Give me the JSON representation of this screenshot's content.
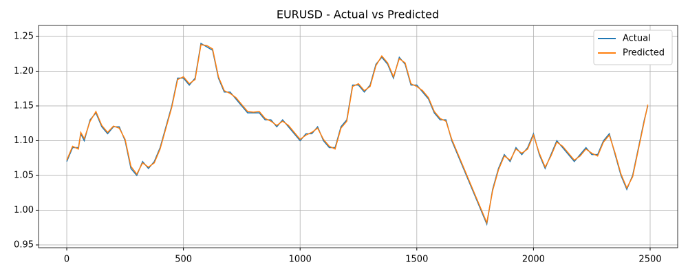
{
  "chart_data": {
    "type": "line",
    "title": "EURUSD - Actual vs Predicted",
    "x": [
      0,
      25,
      50,
      60,
      75,
      100,
      125,
      150,
      175,
      200,
      225,
      250,
      275,
      300,
      325,
      350,
      375,
      400,
      425,
      450,
      475,
      500,
      525,
      550,
      575,
      600,
      625,
      650,
      675,
      700,
      725,
      750,
      775,
      800,
      825,
      850,
      875,
      900,
      925,
      950,
      975,
      1000,
      1025,
      1050,
      1075,
      1100,
      1125,
      1150,
      1175,
      1200,
      1225,
      1250,
      1275,
      1300,
      1325,
      1350,
      1375,
      1400,
      1425,
      1450,
      1475,
      1500,
      1525,
      1550,
      1575,
      1600,
      1625,
      1650,
      1675,
      1700,
      1725,
      1750,
      1775,
      1800,
      1825,
      1850,
      1875,
      1900,
      1925,
      1950,
      1975,
      2000,
      2025,
      2050,
      2075,
      2100,
      2125,
      2150,
      2175,
      2200,
      2225,
      2250,
      2275,
      2300,
      2325,
      2350,
      2375,
      2400,
      2425,
      2450,
      2475,
      2490
    ],
    "series": [
      {
        "name": "Actual",
        "color": "#1f77b4",
        "values": [
          1.07,
          1.09,
          1.09,
          1.11,
          1.1,
          1.13,
          1.14,
          1.12,
          1.11,
          1.12,
          1.12,
          1.1,
          1.06,
          1.05,
          1.07,
          1.06,
          1.07,
          1.09,
          1.12,
          1.15,
          1.19,
          1.19,
          1.18,
          1.19,
          1.24,
          1.235,
          1.23,
          1.19,
          1.17,
          1.17,
          1.16,
          1.15,
          1.14,
          1.14,
          1.14,
          1.13,
          1.13,
          1.12,
          1.13,
          1.12,
          1.11,
          1.1,
          1.11,
          1.11,
          1.12,
          1.1,
          1.09,
          1.09,
          1.12,
          1.13,
          1.18,
          1.18,
          1.17,
          1.18,
          1.21,
          1.22,
          1.21,
          1.19,
          1.22,
          1.21,
          1.18,
          1.18,
          1.17,
          1.16,
          1.14,
          1.13,
          1.13,
          1.1,
          1.08,
          1.06,
          1.04,
          1.02,
          1.0,
          0.98,
          1.03,
          1.06,
          1.08,
          1.07,
          1.09,
          1.08,
          1.09,
          1.11,
          1.08,
          1.06,
          1.08,
          1.1,
          1.09,
          1.08,
          1.07,
          1.08,
          1.09,
          1.08,
          1.08,
          1.1,
          1.11,
          1.08,
          1.05,
          1.03,
          1.05,
          1.09,
          1.13,
          1.15
        ]
      },
      {
        "name": "Predicted",
        "color": "#ff7f0e",
        "values": [
          1.072,
          1.092,
          1.088,
          1.112,
          1.103,
          1.128,
          1.142,
          1.122,
          1.112,
          1.121,
          1.118,
          1.102,
          1.063,
          1.052,
          1.068,
          1.062,
          1.068,
          1.088,
          1.118,
          1.148,
          1.188,
          1.192,
          1.182,
          1.188,
          1.238,
          1.237,
          1.232,
          1.192,
          1.172,
          1.168,
          1.162,
          1.152,
          1.142,
          1.141,
          1.142,
          1.132,
          1.128,
          1.122,
          1.128,
          1.122,
          1.112,
          1.102,
          1.108,
          1.112,
          1.118,
          1.102,
          1.092,
          1.088,
          1.118,
          1.128,
          1.178,
          1.182,
          1.172,
          1.178,
          1.208,
          1.222,
          1.212,
          1.192,
          1.218,
          1.212,
          1.182,
          1.178,
          1.172,
          1.162,
          1.142,
          1.132,
          1.128,
          1.102,
          1.082,
          1.062,
          1.042,
          1.022,
          1.002,
          0.982,
          1.028,
          1.058,
          1.078,
          1.072,
          1.088,
          1.082,
          1.088,
          1.108,
          1.082,
          1.062,
          1.078,
          1.098,
          1.092,
          1.082,
          1.072,
          1.078,
          1.088,
          1.082,
          1.078,
          1.098,
          1.108,
          1.082,
          1.052,
          1.032,
          1.048,
          1.088,
          1.128,
          1.152
        ]
      }
    ],
    "xlim": [
      -121,
      2618
    ],
    "ylim": [
      0.946,
      1.2658
    ],
    "xticks": [
      0,
      500,
      1000,
      1500,
      2000,
      2500
    ],
    "yticks": [
      {
        "value": 0.95,
        "label": "0.95"
      },
      {
        "value": 1.0,
        "label": "1.00"
      },
      {
        "value": 1.05,
        "label": "1.05"
      },
      {
        "value": 1.1,
        "label": "1.10"
      },
      {
        "value": 1.15,
        "label": "1.15"
      },
      {
        "value": 1.2,
        "label": "1.20"
      },
      {
        "value": 1.25,
        "label": "1.25"
      }
    ],
    "grid": true,
    "legend": "upper right"
  }
}
